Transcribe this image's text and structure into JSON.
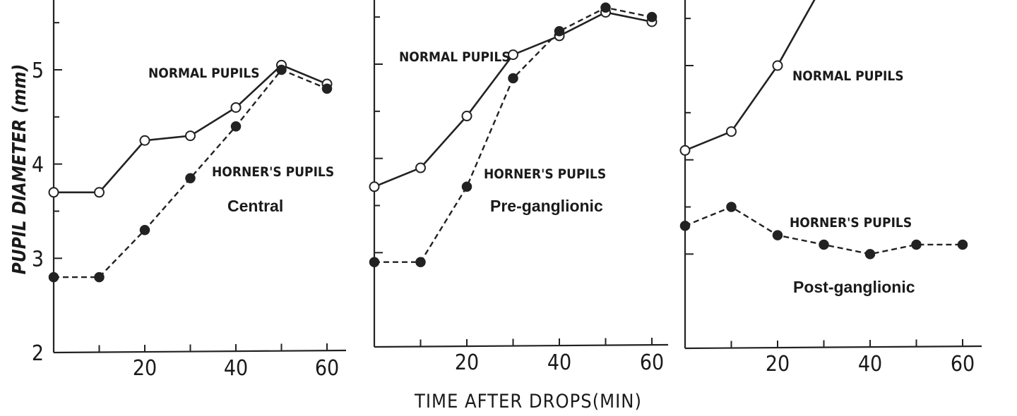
{
  "chart_data": [
    {
      "type": "line",
      "title": "Central",
      "ylabel": "PUPIL DIAMETER (mm)",
      "ylim": [
        2,
        5.7
      ],
      "xlim": [
        0,
        62
      ],
      "x_ticks": [
        20,
        40,
        60
      ],
      "y_ticks": [
        2,
        3,
        4,
        5
      ],
      "series": [
        {
          "name": "NORMAL PUPILS",
          "marker": "open-circle",
          "style": "solid",
          "x": [
            0,
            10,
            20,
            30,
            40,
            50,
            60
          ],
          "values": [
            3.7,
            3.7,
            4.25,
            4.3,
            4.6,
            5.05,
            4.85
          ]
        },
        {
          "name": "HORNER'S PUPILS",
          "marker": "filled-circle",
          "style": "dashed",
          "x": [
            0,
            10,
            20,
            30,
            40,
            50,
            60
          ],
          "values": [
            2.8,
            2.8,
            3.3,
            3.85,
            4.4,
            5.0,
            4.8
          ]
        }
      ]
    },
    {
      "type": "line",
      "title": "Pre-ganglionic",
      "ylim": [
        2,
        5.7
      ],
      "xlim": [
        0,
        62
      ],
      "x_ticks": [
        20,
        40,
        60
      ],
      "series": [
        {
          "name": "NORMAL PUPILS",
          "marker": "open-circle",
          "style": "solid",
          "x": [
            0,
            10,
            20,
            30,
            40,
            50,
            60
          ],
          "values": [
            3.7,
            3.9,
            4.45,
            5.1,
            5.3,
            5.55,
            5.45
          ]
        },
        {
          "name": "HORNER'S PUPILS",
          "marker": "filled-circle",
          "style": "dashed",
          "x": [
            0,
            10,
            20,
            30,
            40,
            50,
            60
          ],
          "values": [
            2.9,
            2.9,
            3.7,
            4.85,
            5.35,
            5.6,
            5.5
          ]
        }
      ]
    },
    {
      "type": "line",
      "title": "Post-ganglionic",
      "ylim": [
        2,
        5.7
      ],
      "xlim": [
        0,
        62
      ],
      "x_ticks": [
        20,
        40,
        60
      ],
      "xlabel": "TIME AFTER DROPS(MIN)",
      "series": [
        {
          "name": "NORMAL PUPILS",
          "marker": "open-circle",
          "style": "solid",
          "x": [
            0,
            10,
            20,
            28
          ],
          "values": [
            4.1,
            4.3,
            5.0,
            5.7
          ],
          "note_markers_on": [
            0,
            10,
            20
          ]
        },
        {
          "name": "HORNER'S PUPILS",
          "marker": "filled-circle",
          "style": "dashed",
          "x": [
            0,
            10,
            20,
            30,
            40,
            50,
            60
          ],
          "values": [
            3.3,
            3.5,
            3.2,
            3.1,
            3.0,
            3.1,
            3.1
          ]
        }
      ]
    }
  ]
}
